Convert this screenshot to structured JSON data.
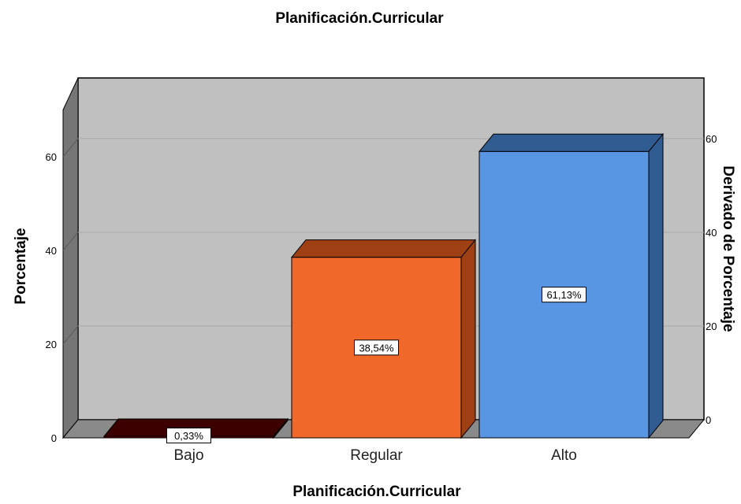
{
  "chart_data": {
    "type": "bar",
    "title": "Planificación.Curricular",
    "xlabel": "Planificación.Curricular",
    "ylabel": "Porcentaje",
    "y2label": "Derivado de Porcentaje",
    "categories": [
      "Bajo",
      "Regular",
      "Alto"
    ],
    "values": [
      0.33,
      38.54,
      61.13
    ],
    "data_labels": [
      "0,33%",
      "38,54%",
      "61,13%"
    ],
    "ylim": [
      0,
      70
    ],
    "yticks": [
      0,
      20,
      40,
      60
    ],
    "y2ticks": [
      0,
      20,
      40,
      60
    ],
    "grid": true,
    "three_d": true,
    "colors": {
      "bars": [
        "#6b0000",
        "#f0682a",
        "#5896e3"
      ],
      "bars_dark": [
        "#3d0000",
        "#9e3f14",
        "#305c91"
      ],
      "wall": "#c0c0c0",
      "side_wall": "#767676",
      "floor": "#8a8a8a",
      "gridline": "#a8a8a8"
    }
  }
}
